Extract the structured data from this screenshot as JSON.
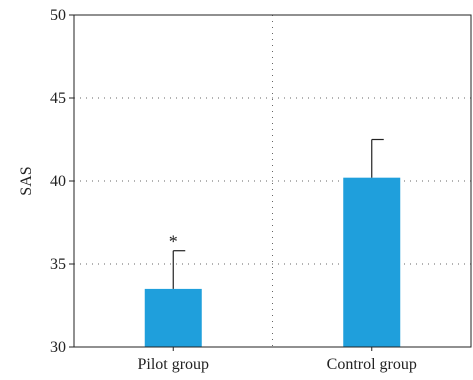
{
  "chart_data": {
    "type": "bar",
    "categories": [
      "Pilot group",
      "Control group"
    ],
    "values": [
      33.5,
      40.2
    ],
    "errors": [
      2.3,
      2.3
    ],
    "annotations": [
      "*",
      ""
    ],
    "ylabel": "SAS",
    "xlabel": "",
    "ylim": [
      30,
      50
    ],
    "yticks": [
      30,
      35,
      40,
      45,
      50
    ],
    "grid": true,
    "bar_color": "#1f9fdc",
    "axis_color": "#222222",
    "grid_color": "#666666"
  }
}
